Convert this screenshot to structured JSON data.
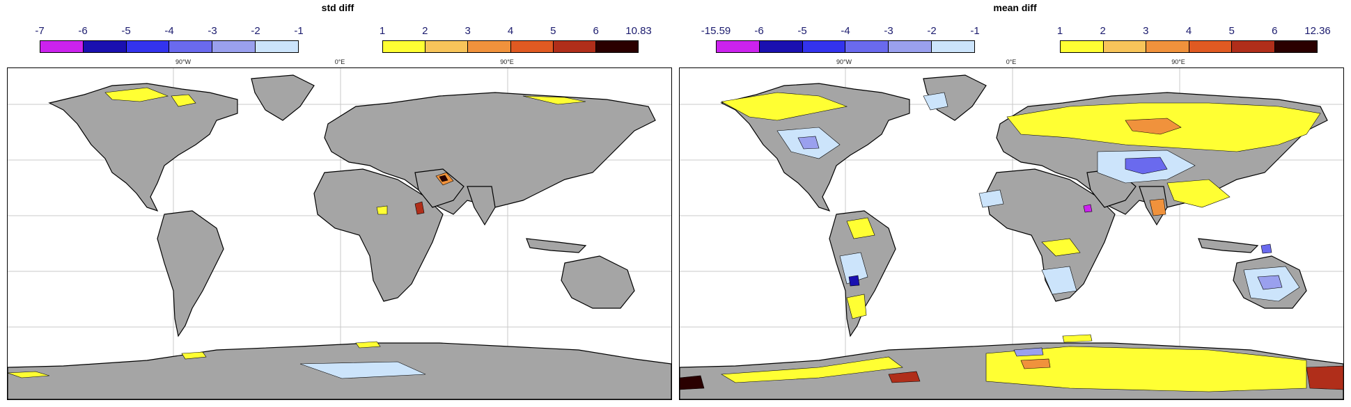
{
  "panels": {
    "left": {
      "title": "std diff",
      "neg_scale": {
        "labels": [
          "-7",
          "-6",
          "-5",
          "-4",
          "-3",
          "-2",
          "-1"
        ],
        "colors": [
          "#cc22ee",
          "#1a10b0",
          "#3333ee",
          "#6a6aee",
          "#9aa0ee",
          "#cce4fb"
        ]
      },
      "pos_scale": {
        "labels": [
          "1",
          "2",
          "3",
          "4",
          "5",
          "6",
          "10.83"
        ],
        "colors": [
          "#ffff33",
          "#f7c45a",
          "#f0923c",
          "#e05a22",
          "#b02e1a",
          "#2a0000"
        ]
      },
      "lon_labels": [
        "90°W",
        "0°E",
        "90°E"
      ]
    },
    "right": {
      "title": "mean diff",
      "neg_scale": {
        "labels": [
          "-15.59",
          "-6",
          "-5",
          "-4",
          "-3",
          "-2",
          "-1"
        ],
        "colors": [
          "#cc22ee",
          "#1a10b0",
          "#3333ee",
          "#6a6aee",
          "#9aa0ee",
          "#cce4fb"
        ]
      },
      "pos_scale": {
        "labels": [
          "1",
          "2",
          "3",
          "4",
          "5",
          "6",
          "12.36"
        ],
        "colors": [
          "#ffff33",
          "#f7c45a",
          "#f0923c",
          "#e05a22",
          "#b02e1a",
          "#2a0000"
        ]
      },
      "lon_labels": [
        "90°W",
        "0°E",
        "90°E"
      ]
    }
  },
  "colors": {
    "land": "#a5a5a5",
    "ocean": "#ffffff",
    "grid": "#c8c8c8",
    "coast": "#000000"
  }
}
